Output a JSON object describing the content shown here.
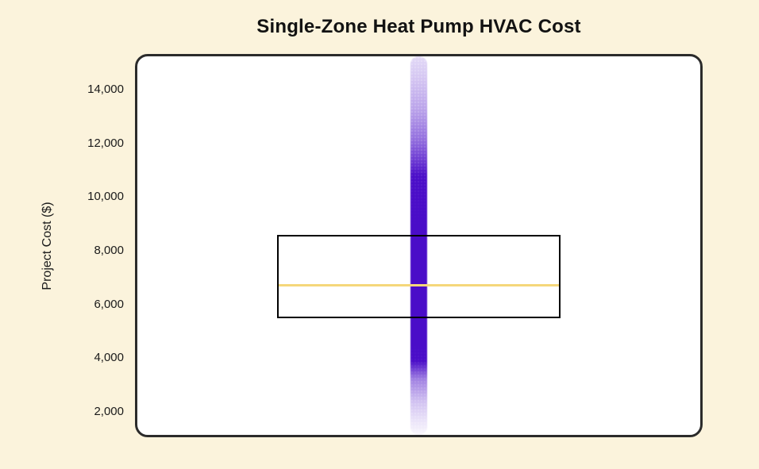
{
  "page": {
    "background_color": "#FBF3DC"
  },
  "chart_data": {
    "type": "boxplot",
    "title": "Single-Zone Heat Pump HVAC Cost",
    "xlabel": "",
    "ylabel": "Project Cost ($)",
    "ylim": [
      1050,
      15330
    ],
    "yticks": [
      2000,
      4000,
      6000,
      8000,
      10000,
      12000,
      14000
    ],
    "ytick_labels": [
      "2,000",
      "4,000",
      "6,000",
      "8,000",
      "10,000",
      "12,000",
      "14,000"
    ],
    "grid": false,
    "legend": false,
    "series": [
      {
        "box": {
          "q1": 5480,
          "median": 6700,
          "q3": 8600
        },
        "strip_overlay": {
          "description": "dense vertical strip of semi-transparent scatter points, opaque in the middle and fading toward both extremes",
          "min": 1150,
          "max": 15330,
          "dense_min": 3900,
          "dense_max": 10800
        }
      }
    ],
    "colors": {
      "background": "#FBF3DC",
      "plot_background": "#FFFFFF",
      "plot_border": "#2B2B2B",
      "box_border": "#000000",
      "median_line": "#F5D77A",
      "points": "#4A0DC8",
      "title_text": "#121212",
      "axis_text": "#1A1A1A"
    }
  }
}
